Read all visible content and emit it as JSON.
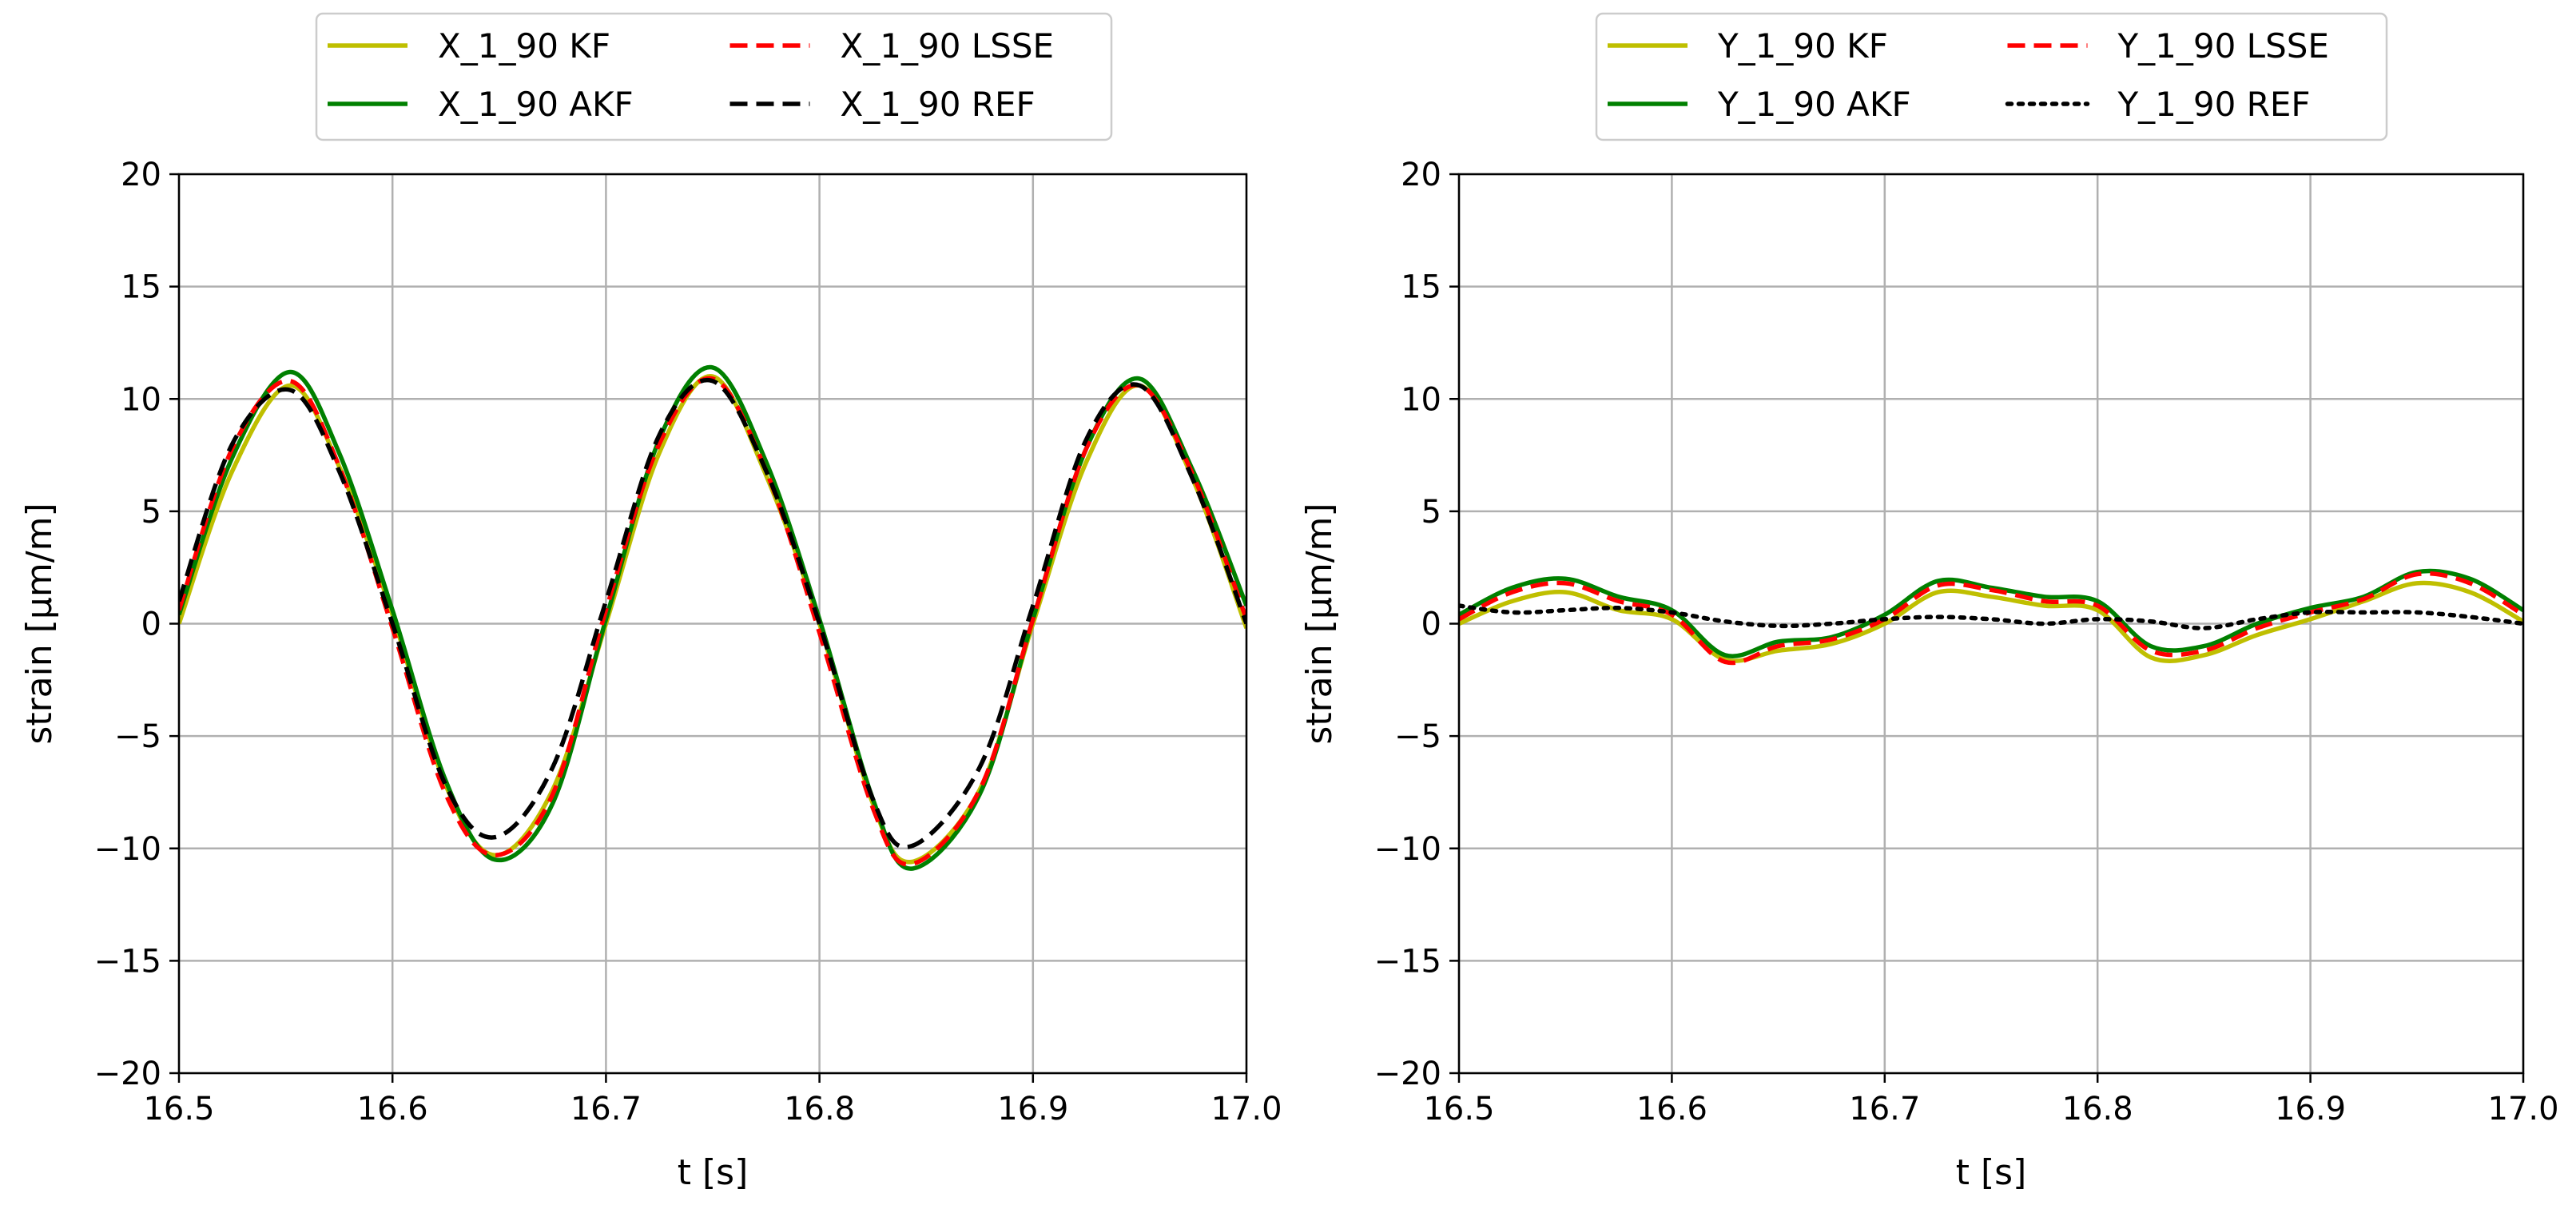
{
  "chart_data": [
    {
      "type": "line",
      "xlabel": "t [s]",
      "ylabel": "strain [µm/m]",
      "xlim": [
        16.5,
        17.0
      ],
      "ylim": [
        -20,
        20
      ],
      "xticks": [
        "16.5",
        "16.6",
        "16.7",
        "16.8",
        "16.9",
        "17.0"
      ],
      "yticks": [
        "20",
        "15",
        "10",
        "5",
        "0",
        "−5",
        "−10",
        "−15",
        "−20"
      ],
      "grid": true,
      "legend_position": "top-center",
      "legend_columns": 2,
      "series": [
        {
          "name": "X_1_90 KF",
          "color": "#bfbf00",
          "style": "solid",
          "x": [
            16.5,
            16.525,
            16.552,
            16.575,
            16.6,
            16.625,
            16.648,
            16.675,
            16.7,
            16.725,
            16.75,
            16.775,
            16.8,
            16.825,
            16.843,
            16.875,
            16.9,
            16.925,
            16.95,
            16.975,
            17.0
          ],
          "y": [
            0.0,
            6.8,
            10.6,
            7.0,
            0.4,
            -7.2,
            -10.3,
            -7.4,
            0.0,
            7.6,
            11.0,
            6.6,
            0.0,
            -8.0,
            -10.6,
            -7.4,
            0.0,
            7.2,
            10.6,
            6.4,
            -0.2
          ]
        },
        {
          "name": "X_1_90 AKF",
          "color": "#008000",
          "style": "solid",
          "x": [
            16.5,
            16.525,
            16.552,
            16.575,
            16.6,
            16.625,
            16.648,
            16.675,
            16.7,
            16.725,
            16.75,
            16.775,
            16.8,
            16.825,
            16.843,
            16.875,
            16.9,
            16.925,
            16.95,
            16.975,
            17.0
          ],
          "y": [
            0.4,
            7.4,
            11.2,
            7.6,
            0.6,
            -7.0,
            -10.5,
            -8.0,
            0.2,
            8.2,
            11.4,
            7.2,
            0.2,
            -7.8,
            -10.9,
            -7.6,
            0.2,
            7.8,
            10.9,
            6.8,
            0.8
          ]
        },
        {
          "name": "X_1_90 LSSE",
          "color": "#ff0000",
          "style": "dashed",
          "x": [
            16.5,
            16.525,
            16.552,
            16.575,
            16.6,
            16.625,
            16.648,
            16.675,
            16.7,
            16.725,
            16.75,
            16.775,
            16.8,
            16.825,
            16.843,
            16.875,
            16.9,
            16.925,
            16.95,
            16.975,
            17.0
          ],
          "y": [
            0.6,
            7.8,
            10.8,
            7.0,
            -0.2,
            -7.6,
            -10.3,
            -7.6,
            0.6,
            8.0,
            10.9,
            6.8,
            -0.4,
            -8.2,
            -10.7,
            -7.4,
            0.2,
            7.8,
            10.6,
            6.6,
            0.2
          ]
        },
        {
          "name": "X_1_90 REF",
          "color": "#000000",
          "style": "dashed",
          "x": [
            16.5,
            16.525,
            16.552,
            16.575,
            16.6,
            16.625,
            16.648,
            16.675,
            16.7,
            16.725,
            16.75,
            16.775,
            16.8,
            16.825,
            16.843,
            16.875,
            16.9,
            16.925,
            16.95,
            16.975,
            17.0
          ],
          "y": [
            1.0,
            8.0,
            10.4,
            6.8,
            0.0,
            -7.2,
            -9.5,
            -6.4,
            1.0,
            8.4,
            10.8,
            6.8,
            0.0,
            -7.8,
            -9.9,
            -6.4,
            0.8,
            8.2,
            10.6,
            6.4,
            0.0
          ]
        }
      ]
    },
    {
      "type": "line",
      "xlabel": "t [s]",
      "ylabel": "strain [µm/m]",
      "xlim": [
        16.5,
        17.0
      ],
      "ylim": [
        -20,
        20
      ],
      "xticks": [
        "16.5",
        "16.6",
        "16.7",
        "16.8",
        "16.9",
        "17.0"
      ],
      "yticks": [
        "20",
        "15",
        "10",
        "5",
        "0",
        "−5",
        "−10",
        "−15",
        "−20"
      ],
      "grid": true,
      "legend_position": "top-center",
      "legend_columns": 2,
      "series": [
        {
          "name": "Y_1_90 KF",
          "color": "#bfbf00",
          "style": "solid",
          "x": [
            16.5,
            16.525,
            16.55,
            16.575,
            16.6,
            16.625,
            16.65,
            16.675,
            16.7,
            16.725,
            16.75,
            16.775,
            16.8,
            16.825,
            16.85,
            16.875,
            16.9,
            16.925,
            16.95,
            16.975,
            17.0
          ],
          "y": [
            0.0,
            1.0,
            1.4,
            0.6,
            0.2,
            -1.6,
            -1.2,
            -0.9,
            0.0,
            1.4,
            1.2,
            0.8,
            0.6,
            -1.5,
            -1.4,
            -0.5,
            0.2,
            1.0,
            1.8,
            1.4,
            0.1
          ]
        },
        {
          "name": "Y_1_90 AKF",
          "color": "#008000",
          "style": "solid",
          "x": [
            16.5,
            16.525,
            16.55,
            16.575,
            16.6,
            16.625,
            16.65,
            16.675,
            16.7,
            16.725,
            16.75,
            16.775,
            16.8,
            16.825,
            16.85,
            16.875,
            16.9,
            16.925,
            16.95,
            16.975,
            17.0
          ],
          "y": [
            0.4,
            1.6,
            2.0,
            1.2,
            0.6,
            -1.4,
            -0.8,
            -0.6,
            0.4,
            1.9,
            1.6,
            1.2,
            1.0,
            -1.0,
            -1.0,
            0.0,
            0.7,
            1.2,
            2.3,
            2.0,
            0.6
          ]
        },
        {
          "name": "Y_1_90 LSSE",
          "color": "#ff0000",
          "style": "dashed",
          "x": [
            16.5,
            16.525,
            16.55,
            16.575,
            16.6,
            16.625,
            16.65,
            16.675,
            16.7,
            16.725,
            16.75,
            16.775,
            16.8,
            16.825,
            16.85,
            16.875,
            16.9,
            16.925,
            16.95,
            16.975,
            17.0
          ],
          "y": [
            0.2,
            1.4,
            1.8,
            1.0,
            0.4,
            -1.7,
            -1.0,
            -0.7,
            0.2,
            1.7,
            1.5,
            1.0,
            0.8,
            -1.2,
            -1.2,
            -0.2,
            0.5,
            1.1,
            2.2,
            1.8,
            0.4
          ]
        },
        {
          "name": "Y_1_90 REF",
          "color": "#000000",
          "style": "dotted",
          "x": [
            16.5,
            16.525,
            16.55,
            16.575,
            16.6,
            16.625,
            16.65,
            16.675,
            16.7,
            16.725,
            16.75,
            16.775,
            16.8,
            16.825,
            16.85,
            16.875,
            16.9,
            16.925,
            16.95,
            16.975,
            17.0
          ],
          "y": [
            0.8,
            0.5,
            0.6,
            0.7,
            0.5,
            0.1,
            -0.1,
            0.0,
            0.2,
            0.3,
            0.2,
            0.0,
            0.2,
            0.1,
            -0.2,
            0.2,
            0.5,
            0.5,
            0.5,
            0.3,
            0.0
          ]
        }
      ]
    }
  ]
}
